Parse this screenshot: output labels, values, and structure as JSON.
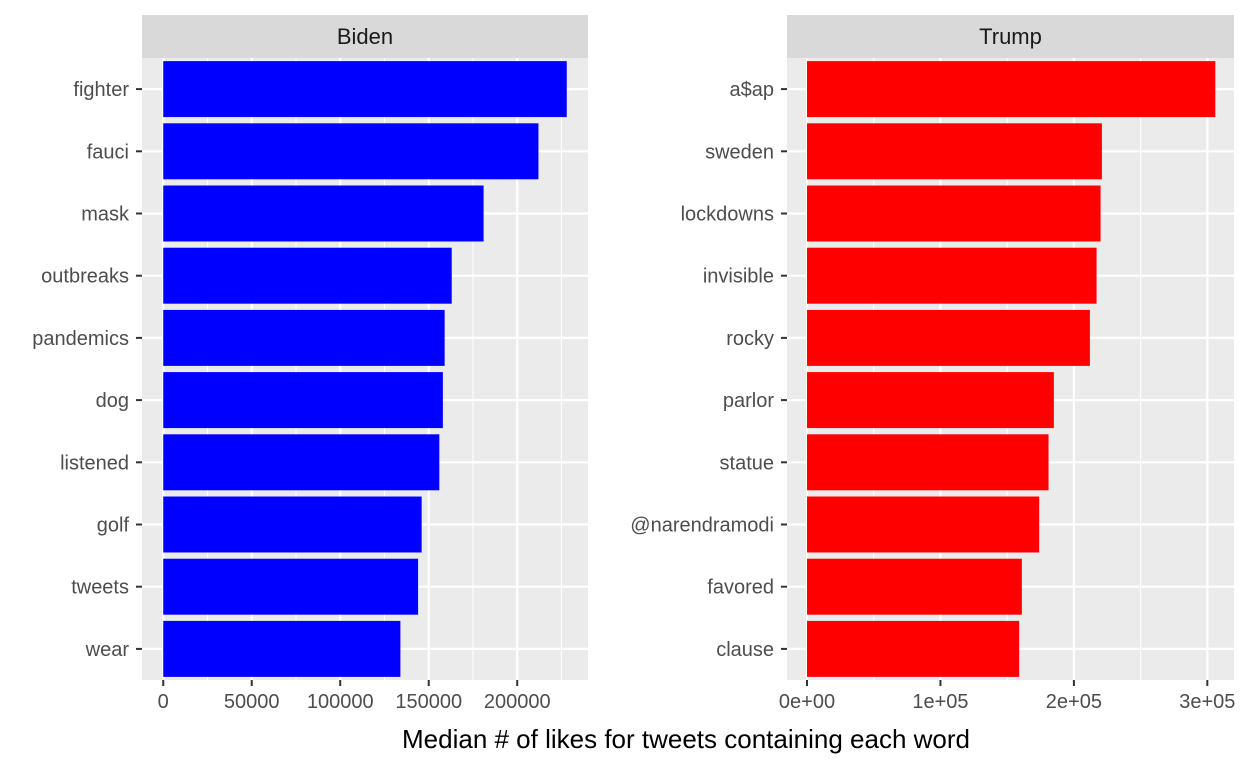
{
  "chart_data": {
    "type": "bar",
    "orientation": "horizontal",
    "xlabel": "Median # of likes for tweets containing each word",
    "ylabel": "",
    "grid": true,
    "legend": "none",
    "facets": [
      {
        "strip": "Biden",
        "color": "#0000ff",
        "categories": [
          "fighter",
          "fauci",
          "mask",
          "outbreaks",
          "pandemics",
          "dog",
          "listened",
          "golf",
          "tweets",
          "wear"
        ],
        "values": [
          228000,
          212000,
          181000,
          163000,
          159000,
          158000,
          156000,
          146000,
          144000,
          134000
        ],
        "xlim": [
          -12000,
          240000
        ],
        "ticks": [
          0,
          50000,
          100000,
          150000,
          200000
        ],
        "tick_labels": [
          "0",
          "50000",
          "100000",
          "150000",
          "200000"
        ]
      },
      {
        "strip": "Trump",
        "color": "#ff0000",
        "categories": [
          "a$ap",
          "sweden",
          "lockdowns",
          "invisible",
          "rocky",
          "parlor",
          "statue",
          "@narendramodi",
          "favored",
          "clause"
        ],
        "values": [
          306000,
          221000,
          220000,
          217000,
          212000,
          185000,
          181000,
          174000,
          161000,
          159000
        ],
        "xlim": [
          -15000,
          320000
        ],
        "ticks": [
          0,
          100000,
          200000,
          300000
        ],
        "tick_labels": [
          "0e+00",
          "1e+05",
          "2e+05",
          "3e+05"
        ]
      }
    ]
  }
}
